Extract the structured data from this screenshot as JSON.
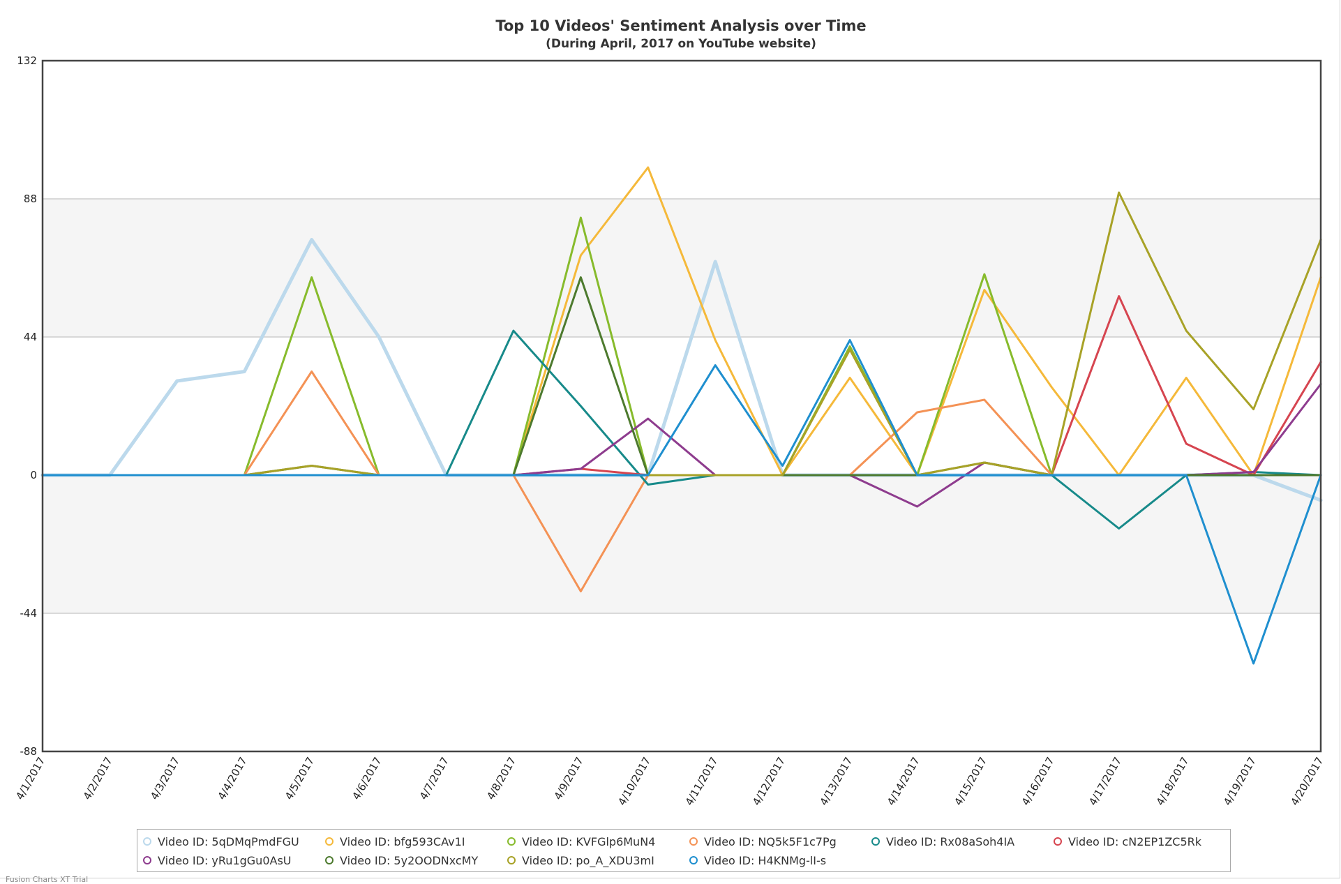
{
  "chart_data": {
    "type": "line",
    "title": "Top 10 Videos' Sentiment Analysis over Time",
    "subtitle": "(During April, 2017 on YouTube website)",
    "xlabel": "",
    "ylabel": "",
    "ylim": [
      -88,
      132
    ],
    "yticks": [
      "132",
      "88",
      "44",
      "0",
      "-44",
      "-88"
    ],
    "categories": [
      "4/1/2017",
      "4/2/2017",
      "4/3/2017",
      "4/4/2017",
      "4/5/2017",
      "4/6/2017",
      "4/7/2017",
      "4/8/2017",
      "4/9/2017",
      "4/10/2017",
      "4/11/2017",
      "4/12/2017",
      "4/13/2017",
      "4/14/2017",
      "4/15/2017",
      "4/16/2017",
      "4/17/2017",
      "4/18/2017",
      "4/19/2017",
      "4/20/2017"
    ],
    "grid": true,
    "legend_position": "bottom",
    "series": [
      {
        "name": "Video ID: 5qDMqPmdFGU",
        "color": "#bcd9ec",
        "width": 5,
        "values": [
          0,
          0,
          30,
          33,
          75,
          44,
          0,
          0,
          0,
          0,
          68,
          0,
          0,
          0,
          0,
          0,
          0,
          0,
          0,
          -8
        ]
      },
      {
        "name": "Video ID: bfg593CAv1I",
        "color": "#f5b93a",
        "width": 3,
        "values": [
          0,
          0,
          0,
          0,
          0,
          0,
          0,
          0,
          70,
          98,
          43,
          0,
          31,
          0,
          59,
          28,
          0,
          31,
          0,
          63
        ]
      },
      {
        "name": "Video ID: KVFGlp6MuN4",
        "color": "#87bb2c",
        "width": 3,
        "values": [
          0,
          0,
          0,
          0,
          63,
          0,
          0,
          0,
          82,
          0,
          0,
          0,
          41,
          0,
          64,
          0,
          0,
          0,
          0,
          0
        ]
      },
      {
        "name": "Video ID: NQ5k5F1c7Pg",
        "color": "#f49255",
        "width": 3,
        "values": [
          0,
          0,
          0,
          0,
          33,
          0,
          0,
          0,
          -37,
          0,
          0,
          0,
          0,
          20,
          24,
          0,
          0,
          0,
          0,
          0
        ]
      },
      {
        "name": "Video ID: Rx08aSoh4IA",
        "color": "#178a8a",
        "width": 3,
        "values": [
          0,
          0,
          0,
          0,
          0,
          0,
          0,
          46,
          22,
          -3,
          0,
          0,
          0,
          0,
          0,
          0,
          -17,
          0,
          1,
          0
        ]
      },
      {
        "name": "Video ID: cN2EP1ZC5Rk",
        "color": "#d64550",
        "width": 3,
        "values": [
          0,
          0,
          0,
          0,
          0,
          0,
          0,
          0,
          2,
          0,
          0,
          0,
          0,
          0,
          0,
          0,
          57,
          10,
          0,
          36
        ]
      },
      {
        "name": "Video ID: yRu1gGu0AsU",
        "color": "#8e3c8e",
        "width": 3,
        "values": [
          0,
          0,
          0,
          0,
          0,
          0,
          0,
          0,
          2,
          18,
          0,
          0,
          0,
          -10,
          4,
          0,
          0,
          0,
          1,
          29
        ]
      },
      {
        "name": "Video ID: 5y2OODNxcMY",
        "color": "#4d7a2e",
        "width": 3,
        "values": [
          0,
          0,
          0,
          0,
          3,
          0,
          0,
          0,
          63,
          0,
          0,
          0,
          0,
          0,
          4,
          0,
          0,
          0,
          0,
          0
        ]
      },
      {
        "name": "Video ID: po_A_XDU3mI",
        "color": "#a8a227",
        "width": 3,
        "values": [
          0,
          0,
          0,
          0,
          3,
          0,
          0,
          0,
          0,
          0,
          0,
          0,
          40,
          0,
          4,
          0,
          90,
          46,
          21,
          75
        ]
      },
      {
        "name": "Video ID: H4KNMg-lI-s",
        "color": "#1f8fcf",
        "width": 3,
        "values": [
          0,
          0,
          0,
          0,
          0,
          0,
          0,
          0,
          0,
          0,
          35,
          3,
          43,
          0,
          0,
          0,
          0,
          0,
          -60,
          0
        ]
      }
    ]
  },
  "credit": "Fusion Charts XT Trial"
}
